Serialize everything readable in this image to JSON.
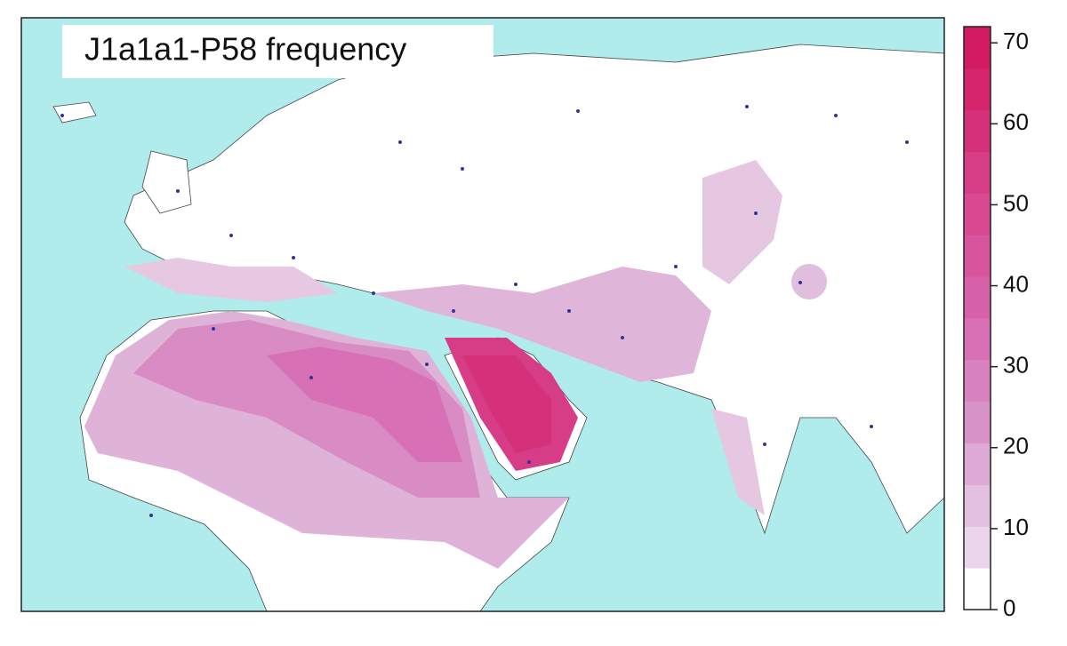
{
  "title": "J1a1a1-P58 frequency",
  "colorbar": {
    "lim": [
      0,
      72
    ],
    "ticks": [
      0,
      10,
      20,
      30,
      40,
      50,
      60,
      70
    ],
    "colors": [
      "#ffffff",
      "#ead5ea",
      "#e3c0df",
      "#ddaad5",
      "#d894c9",
      "#d882c0",
      "#d870b6",
      "#d862aa",
      "#d8559e",
      "#d84992",
      "#d63d86",
      "#d5317a",
      "#d4256d",
      "#d21a61"
    ]
  }
}
